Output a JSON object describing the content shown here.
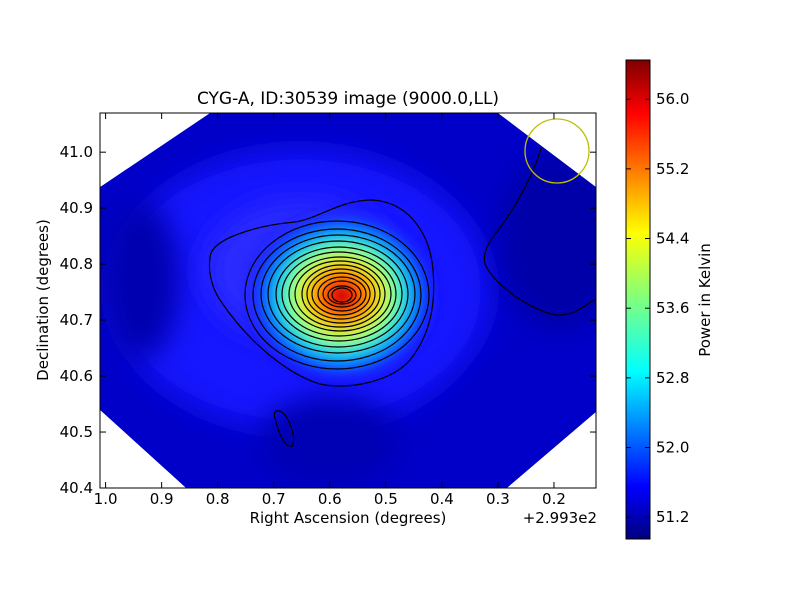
{
  "chart_data": {
    "type": "heatmap",
    "title": "CYG-A, ID:30539 image (9000.0,LL)",
    "xlabel": "Right Ascension (degrees)",
    "ylabel": "Declination (degrees)",
    "x_offset_label": "+2.993e2",
    "xlim": [
      1.01,
      0.125
    ],
    "ylim": [
      40.4,
      41.07
    ],
    "x_ticks": [
      1.0,
      0.9,
      0.8,
      0.7,
      0.6,
      0.5,
      0.4,
      0.3,
      0.2
    ],
    "x_tick_labels": [
      "1.0",
      "0.9",
      "0.8",
      "0.7",
      "0.6",
      "0.5",
      "0.4",
      "0.3",
      "0.2"
    ],
    "y_ticks": [
      40.4,
      40.5,
      40.6,
      40.7,
      40.8,
      40.9,
      41.0
    ],
    "y_tick_labels": [
      "40.4",
      "40.5",
      "40.6",
      "40.7",
      "40.8",
      "40.9",
      "41.0"
    ],
    "colorbar": {
      "label": "Power in Kelvin",
      "range": [
        50.95,
        56.45
      ],
      "ticks": [
        51.2,
        52.0,
        52.8,
        53.6,
        54.4,
        55.2,
        56.0
      ],
      "tick_labels": [
        "51.2",
        "52.0",
        "52.8",
        "53.6",
        "54.4",
        "55.2",
        "56.0"
      ],
      "colormap": "jet"
    },
    "peak": {
      "ra": 0.575,
      "dec": 40.742,
      "value": 56.3
    },
    "beam_circle": {
      "ra": 0.2,
      "dec": 40.998,
      "color": "#bfbf00"
    },
    "grid": false,
    "colors": {
      "contour": "#000000",
      "background_nan": "#ffffff"
    }
  }
}
